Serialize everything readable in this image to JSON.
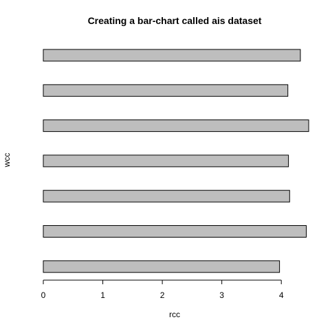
{
  "chart_data": {
    "type": "bar",
    "orientation": "horizontal",
    "title": "Creating a bar-chart called ais dataset",
    "xlabel": "rcc",
    "ylabel": "wcc",
    "values": [
      3.97,
      4.42,
      4.14,
      4.12,
      4.46,
      4.11,
      4.32
    ],
    "xlim": [
      0,
      4.46
    ],
    "xticks": [
      0,
      1,
      2,
      3,
      4
    ],
    "grid": false,
    "legend": "none",
    "bar_fill": "#bebebe",
    "bar_stroke": "#000000"
  }
}
